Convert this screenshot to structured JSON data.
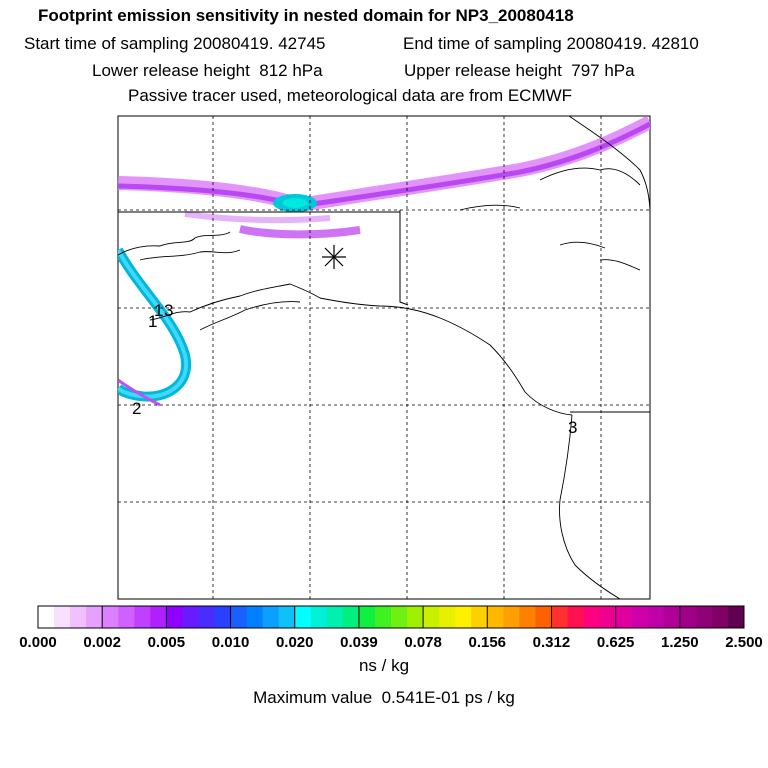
{
  "header": {
    "title": "Footprint emission sensitivity in nested domain for NP3_20080418",
    "start_time": "Start time of sampling 20080419. 42745",
    "end_time": "End time of sampling 20080419. 42810",
    "lower_release": "Lower release height  812 hPa",
    "upper_release": "Upper release height  797 hPa",
    "tracer_note": "Passive tracer used, meteorological data are from ECMWF"
  },
  "map": {
    "annotations": [
      "1",
      "1",
      "3",
      "2",
      "3"
    ],
    "receptor_marker": "asterisk",
    "plume_colors": {
      "low": "#e080f8",
      "mid": "#b040f0",
      "high": "#00ccdd"
    }
  },
  "colorbar": {
    "colors": [
      "#ffffff",
      "#f8e0ff",
      "#f0c0ff",
      "#e8a0ff",
      "#dc80ff",
      "#d060ff",
      "#c040ff",
      "#b020ff",
      "#9000ff",
      "#6a1aff",
      "#4a2cff",
      "#2a40ff",
      "#1860ff",
      "#0080ff",
      "#0aa0ff",
      "#10c0f8",
      "#00ffff",
      "#00f0d8",
      "#00f0b0",
      "#00f080",
      "#10f040",
      "#40f020",
      "#70f010",
      "#a0f000",
      "#c8f000",
      "#e8f000",
      "#fff000",
      "#ffd000",
      "#ffb800",
      "#ffa000",
      "#ff8000",
      "#ff6000",
      "#ff3030",
      "#ff1050",
      "#ff0080",
      "#f00090",
      "#e000a0",
      "#d000a8",
      "#c000a8",
      "#b00098",
      "#a00088",
      "#900078",
      "#800068",
      "#600050"
    ],
    "ticks": [
      "0.000",
      "0.002",
      "0.005",
      "0.010",
      "0.020",
      "0.039",
      "0.078",
      "0.156",
      "0.312",
      "0.625",
      "1.250",
      "2.500"
    ],
    "units": "ns / kg",
    "max_value_text": "Maximum value  0.541E-01 ps / kg"
  }
}
